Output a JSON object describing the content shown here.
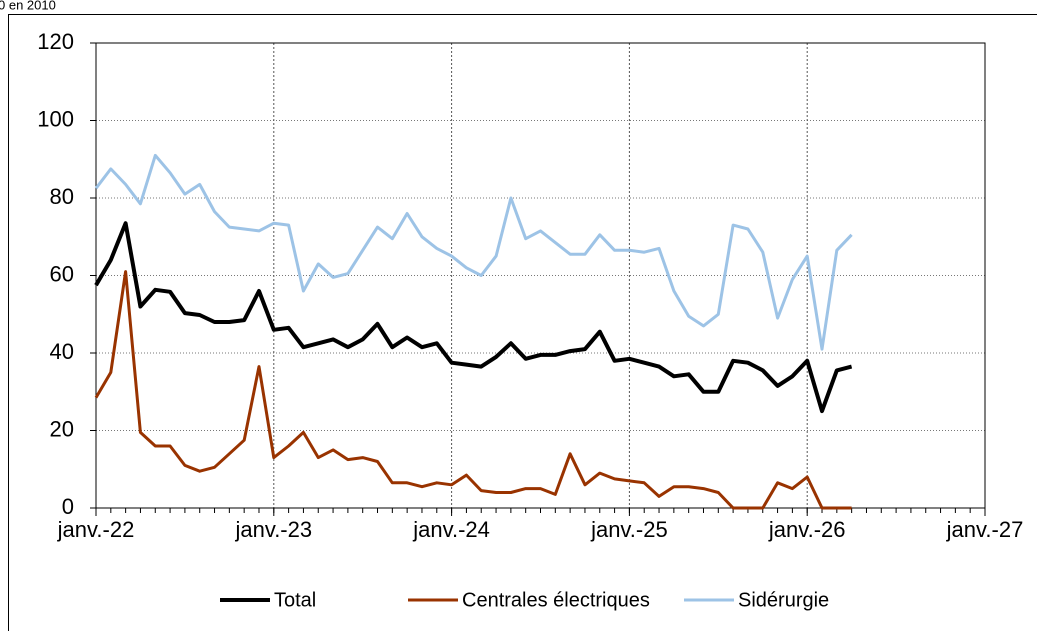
{
  "chart_data": {
    "type": "line",
    "title": "0 en 2010",
    "x": [
      "2022-01",
      "2022-02",
      "2022-03",
      "2022-04",
      "2022-05",
      "2022-06",
      "2022-07",
      "2022-08",
      "2022-09",
      "2022-10",
      "2022-11",
      "2022-12",
      "2023-01",
      "2023-02",
      "2023-03",
      "2023-04",
      "2023-05",
      "2023-06",
      "2023-07",
      "2023-08",
      "2023-09",
      "2023-10",
      "2023-11",
      "2023-12",
      "2024-01",
      "2024-02",
      "2024-03",
      "2024-04",
      "2024-05",
      "2024-06",
      "2024-07",
      "2024-08",
      "2024-09",
      "2024-10",
      "2024-11",
      "2024-12",
      "2025-01",
      "2025-02",
      "2025-03",
      "2025-04",
      "2025-05",
      "2025-06",
      "2025-07",
      "2025-08",
      "2025-09",
      "2025-10",
      "2025-11",
      "2025-12",
      "2026-01",
      "2026-02",
      "2026-03",
      "2026-04"
    ],
    "series": [
      {
        "name": "Total",
        "color": "#000000",
        "values": [
          57.5,
          64,
          73.5,
          52,
          56.3,
          55.8,
          50.3,
          49.8,
          48,
          48,
          48.5,
          56,
          46,
          46.5,
          41.5,
          42.5,
          43.5,
          41.5,
          43.5,
          47.5,
          41.5,
          44,
          41.5,
          42.5,
          37.5,
          37,
          36.5,
          39,
          42.5,
          38.5,
          39.5,
          39.5,
          40.5,
          41,
          45.5,
          38,
          38.5,
          37.5,
          36.5,
          34,
          34.5,
          30,
          30,
          38,
          37.5,
          35.5,
          31.5,
          34,
          38,
          25,
          35.5,
          36.5
        ]
      },
      {
        "name": "Centrales électriques",
        "color": "#993300",
        "values": [
          28.5,
          35,
          61,
          19.5,
          16,
          16,
          11,
          9.5,
          10.5,
          14,
          17.5,
          36.5,
          13,
          16,
          19.5,
          13,
          15,
          12.5,
          13,
          12,
          6.5,
          6.5,
          5.5,
          6.5,
          6,
          8.5,
          4.5,
          4,
          4,
          5,
          5,
          3.5,
          14,
          6,
          9,
          7.5,
          7,
          6.5,
          3,
          5.5,
          5.5,
          5,
          4,
          0,
          0,
          0,
          6.5,
          5,
          8,
          0,
          0,
          0
        ]
      },
      {
        "name": "Sidérurgie",
        "color": "#9dc3e6",
        "values": [
          82.5,
          87.5,
          83.5,
          78.5,
          91,
          86.5,
          81,
          83.5,
          76.5,
          72.5,
          72,
          71.5,
          73.5,
          73,
          56,
          63,
          59.5,
          60.5,
          66.5,
          72.5,
          69.5,
          76,
          70,
          67,
          65,
          62,
          60,
          65,
          80,
          69.5,
          71.5,
          68.5,
          65.5,
          65.5,
          70.5,
          66.5,
          66.5,
          66,
          67,
          56,
          49.5,
          47,
          50,
          73,
          72,
          66,
          49,
          59,
          65,
          41,
          66.5,
          70.5
        ]
      }
    ],
    "xlim": [
      "2022-01",
      "2027-01"
    ],
    "xticks": [
      {
        "value": "2022-01",
        "label": "janv.-22"
      },
      {
        "value": "2023-01",
        "label": "janv.-23"
      },
      {
        "value": "2024-01",
        "label": "janv.-24"
      },
      {
        "value": "2025-01",
        "label": "janv.-25"
      },
      {
        "value": "2026-01",
        "label": "janv.-26"
      },
      {
        "value": "2027-01",
        "label": "janv.-27"
      }
    ],
    "ylim": [
      0,
      120
    ],
    "yticks": [
      0,
      20,
      40,
      60,
      80,
      100,
      120
    ],
    "grid": true,
    "legend": "bottom"
  }
}
